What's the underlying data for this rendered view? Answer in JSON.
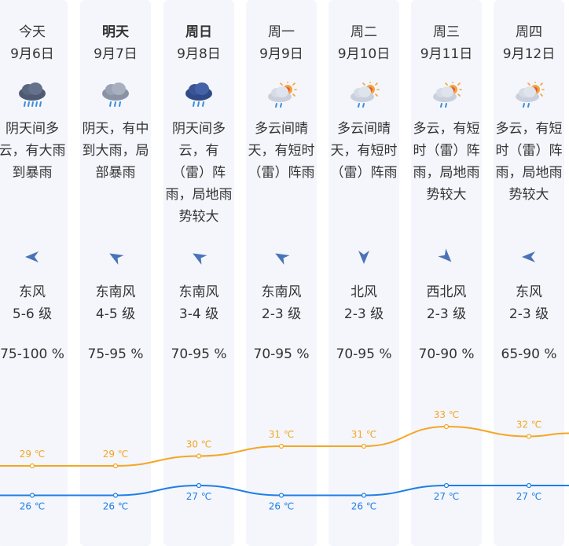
{
  "colors": {
    "high_temp": "#f5a623",
    "low_temp": "#1e7fe6",
    "column_bg": "#f4f6fb",
    "arrow": "#4a73b8"
  },
  "days": [
    {
      "name": "今天",
      "bold": false,
      "date": "9月6日",
      "icon": "heavy-rain-icon",
      "desc": "阴天间多云，有大雨到暴雨",
      "wind_dir": "东风",
      "wind_level": "5-6 级",
      "wind_arrow": "arrow-left",
      "humidity": "75-100 %"
    },
    {
      "name": "明天",
      "bold": true,
      "date": "9月7日",
      "icon": "moderate-rain-icon",
      "desc": "阴天，有中到大雨，局部暴雨",
      "wind_dir": "东南风",
      "wind_level": "4-5 级",
      "wind_arrow": "arrow-up-left",
      "humidity": "75-95 %"
    },
    {
      "name": "周日",
      "bold": true,
      "date": "9月8日",
      "icon": "thunder-shower-icon",
      "desc": "阴天间多云，有（雷）阵雨，局地雨势较大",
      "wind_dir": "东南风",
      "wind_level": "3-4 级",
      "wind_arrow": "arrow-up-left",
      "humidity": "70-95 %"
    },
    {
      "name": "周一",
      "bold": false,
      "date": "9月9日",
      "icon": "partly-cloudy-shower-icon",
      "desc": "多云间晴天，有短时（雷）阵雨",
      "wind_dir": "东南风",
      "wind_level": "2-3 级",
      "wind_arrow": "arrow-up-left",
      "humidity": "70-95 %"
    },
    {
      "name": "周二",
      "bold": false,
      "date": "9月10日",
      "icon": "partly-cloudy-shower-icon",
      "desc": "多云间晴天，有短时（雷）阵雨",
      "wind_dir": "北风",
      "wind_level": "2-3 级",
      "wind_arrow": "arrow-down",
      "humidity": "70-95 %"
    },
    {
      "name": "周三",
      "bold": false,
      "date": "9月11日",
      "icon": "partly-cloudy-shower-icon",
      "desc": "多云，有短时（雷）阵雨，局地雨势较大",
      "wind_dir": "西北风",
      "wind_level": "2-3 级",
      "wind_arrow": "arrow-down-right",
      "humidity": "70-90 %"
    },
    {
      "name": "周四",
      "bold": false,
      "date": "9月12日",
      "icon": "partly-cloudy-shower-icon",
      "desc": "多云，有短时（雷）阵雨，局地雨势较大",
      "wind_dir": "东风",
      "wind_level": "2-3 级",
      "wind_arrow": "arrow-left",
      "humidity": "65-90 %"
    }
  ],
  "chart_data": {
    "type": "line",
    "categories": [
      "9月6日",
      "9月7日",
      "9月8日",
      "9月9日",
      "9月10日",
      "9月11日",
      "9月12日"
    ],
    "series": [
      {
        "name": "",
        "values": [
          29,
          29,
          30,
          31,
          31,
          33,
          32
        ]
      },
      {
        "name": "",
        "values": [
          26,
          26,
          27,
          26,
          26,
          27,
          27
        ]
      }
    ],
    "unit": "℃",
    "labels": {
      "high": [
        "29 ℃",
        "29 ℃",
        "30 ℃",
        "31 ℃",
        "31 ℃",
        "33 ℃",
        "32 ℃"
      ],
      "low": [
        "26 ℃",
        "26 ℃",
        "27 ℃",
        "26 ℃",
        "26 ℃",
        "27 ℃",
        "27 ℃"
      ]
    },
    "grid": false,
    "legend": "none"
  }
}
